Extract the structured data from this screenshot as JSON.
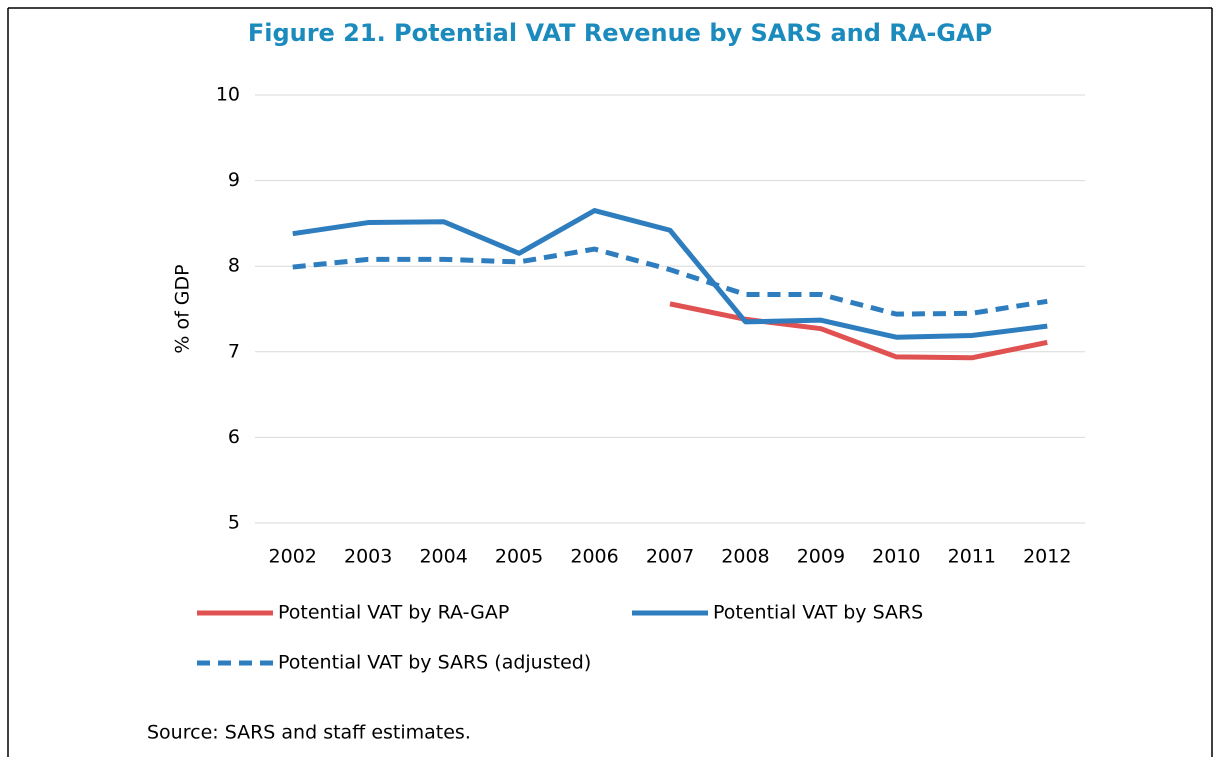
{
  "chart_data": {
    "type": "line",
    "title": "Figure 21. Potential VAT Revenue by SARS and RA-GAP",
    "y_label": "% of GDP",
    "source": "Source: SARS and staff estimates.",
    "categories": [
      "2002",
      "2003",
      "2004",
      "2005",
      "2006",
      "2007",
      "2008",
      "2009",
      "2010",
      "2011",
      "2012"
    ],
    "series": [
      {
        "name": "Potential VAT by RA-GAP",
        "color": "#e05151",
        "dashed": false,
        "values": [
          null,
          null,
          null,
          null,
          null,
          7.56,
          7.38,
          7.27,
          6.94,
          6.93,
          7.11
        ]
      },
      {
        "name": "Potential VAT by SARS",
        "color": "#2e7ebf",
        "dashed": false,
        "values": [
          8.38,
          8.51,
          8.52,
          8.15,
          8.65,
          8.42,
          7.35,
          7.37,
          7.17,
          7.19,
          7.3
        ]
      },
      {
        "name": "Potential VAT by SARS (adjusted)",
        "color": "#2e7ebf",
        "dashed": true,
        "values": [
          7.99,
          8.08,
          8.08,
          8.05,
          8.2,
          7.96,
          7.67,
          7.67,
          7.44,
          7.45,
          7.59
        ]
      }
    ],
    "ylim": [
      5,
      10
    ],
    "yticks": [
      5,
      6,
      7,
      8,
      9,
      10
    ],
    "grid": true
  }
}
